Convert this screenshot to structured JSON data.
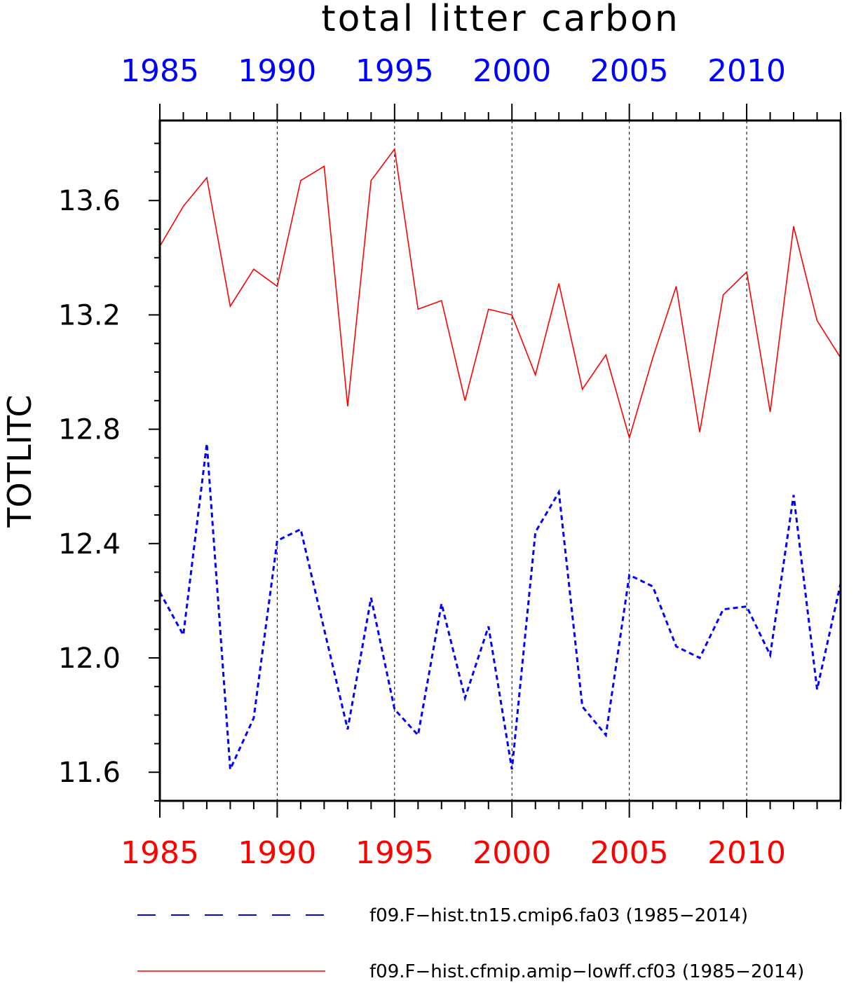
{
  "chart_data": {
    "type": "line",
    "title": "total litter carbon",
    "ylabel": "TOTLITC",
    "xlabel": "",
    "xlim": [
      1985,
      2014
    ],
    "ylim": [
      11.5,
      13.88
    ],
    "x_ticks": [
      1985,
      1990,
      1995,
      2000,
      2005,
      2010
    ],
    "x_tick_labels": [
      "1985",
      "1990",
      "1995",
      "2000",
      "2005",
      "2010"
    ],
    "y_ticks": [
      11.6,
      12.0,
      12.4,
      12.8,
      13.2,
      13.6
    ],
    "y_tick_labels": [
      "11.6",
      "12.0",
      "12.4",
      "12.8",
      "13.2",
      "13.6"
    ],
    "grid": "vertical dashed at major x ticks",
    "x": [
      1985,
      1986,
      1987,
      1988,
      1989,
      1990,
      1991,
      1992,
      1993,
      1994,
      1995,
      1996,
      1997,
      1998,
      1999,
      2000,
      2001,
      2002,
      2003,
      2004,
      2005,
      2006,
      2007,
      2008,
      2009,
      2010,
      2011,
      2012,
      2013,
      2014
    ],
    "series": [
      {
        "name": "f09.F−hist.tn15.cmip6.fa03 (1985−2014)",
        "color": "#0000ff",
        "style": "dashed",
        "values": [
          12.23,
          12.08,
          12.75,
          11.61,
          11.79,
          12.41,
          12.45,
          12.1,
          11.75,
          12.21,
          11.82,
          11.73,
          12.19,
          11.86,
          12.11,
          11.61,
          12.44,
          12.58,
          11.83,
          11.73,
          12.29,
          12.25,
          12.04,
          12.0,
          12.17,
          12.18,
          12.01,
          12.57,
          11.89,
          12.26
        ]
      },
      {
        "name": "f09.F−hist.cfmip.amip−lowff.cf03 (1985−2014)",
        "color": "#ff0000",
        "style": "solid",
        "values": [
          13.44,
          13.58,
          13.68,
          13.23,
          13.36,
          13.3,
          13.67,
          13.72,
          12.88,
          13.67,
          13.78,
          13.22,
          13.25,
          12.9,
          13.22,
          13.2,
          12.99,
          13.31,
          12.94,
          13.06,
          12.77,
          13.05,
          13.3,
          12.79,
          13.27,
          13.35,
          12.86,
          13.51,
          13.18,
          13.05
        ]
      }
    ],
    "legend_position": "bottom"
  }
}
